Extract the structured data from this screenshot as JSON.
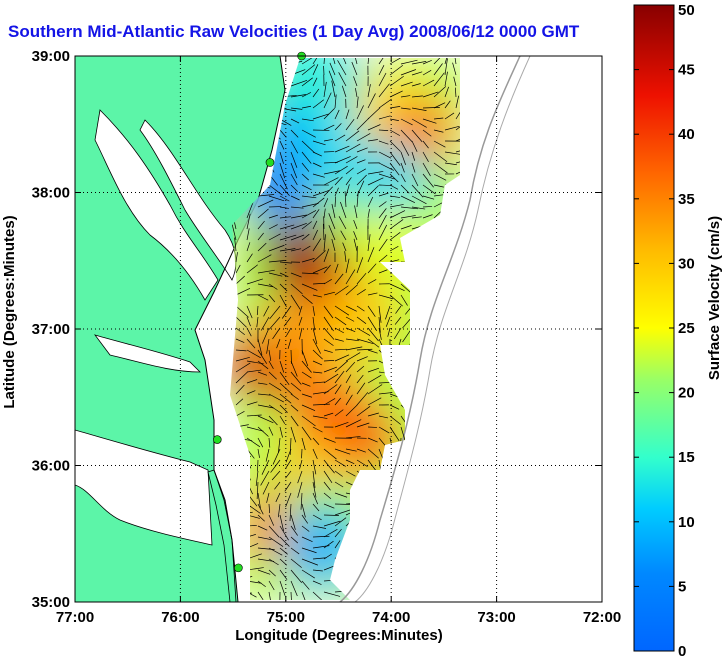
{
  "chart_data": {
    "type": "heatmap",
    "title": "Southern Mid-Atlantic Raw Velocities (1 Day Avg) 2008/06/12 0000 GMT",
    "xlabel": "Longitude (Degrees:Minutes)",
    "ylabel": "Latitude (Degrees:Minutes)",
    "colorbar_label": "Surface Velocity (cm/s)",
    "xlim": [
      -77,
      -72
    ],
    "ylim": [
      35,
      39
    ],
    "clim": [
      0,
      50
    ],
    "xticks": [
      -77,
      -76,
      -75,
      -74,
      -73,
      -72
    ],
    "xtick_labels": [
      "77:00",
      "76:00",
      "75:00",
      "74:00",
      "73:00",
      "72:00"
    ],
    "yticks": [
      35,
      36,
      37,
      38,
      39
    ],
    "ytick_labels": [
      "35:00",
      "36:00",
      "37:00",
      "38:00",
      "39:00"
    ],
    "cticks": [
      0,
      5,
      10,
      15,
      20,
      25,
      30,
      35,
      40,
      45,
      50
    ],
    "ctick_labels": [
      "0",
      "5",
      "10",
      "15",
      "20",
      "25",
      "30",
      "35",
      "40",
      "45",
      "50"
    ],
    "grid": true,
    "land_color": "#5cf5a8",
    "colormap": "jet",
    "speed_field": [
      {
        "lon": -74.85,
        "lat": 37.5,
        "speed": 50
      },
      {
        "lon": -74.55,
        "lat": 37.2,
        "speed": 44
      },
      {
        "lon": -75.2,
        "lat": 36.75,
        "speed": 46
      },
      {
        "lon": -74.9,
        "lat": 36.9,
        "speed": 34
      },
      {
        "lon": -74.3,
        "lat": 37.05,
        "speed": 30
      },
      {
        "lon": -74.6,
        "lat": 36.4,
        "speed": 37
      },
      {
        "lon": -74.3,
        "lat": 36.2,
        "speed": 38
      },
      {
        "lon": -74.75,
        "lat": 35.9,
        "speed": 30
      },
      {
        "lon": -75.05,
        "lat": 35.55,
        "speed": 36
      },
      {
        "lon": -74.65,
        "lat": 35.6,
        "speed": 20
      },
      {
        "lon": -74.65,
        "lat": 35.4,
        "speed": 9
      },
      {
        "lon": -74.6,
        "lat": 38.75,
        "speed": 9
      },
      {
        "lon": -74.95,
        "lat": 38.5,
        "speed": 8
      },
      {
        "lon": -75.05,
        "lat": 38.05,
        "speed": 6
      },
      {
        "lon": -74.5,
        "lat": 38.3,
        "speed": 12
      },
      {
        "lon": -74.0,
        "lat": 38.6,
        "speed": 26
      },
      {
        "lon": -73.75,
        "lat": 38.45,
        "speed": 35
      },
      {
        "lon": -74.0,
        "lat": 38.05,
        "speed": 12
      },
      {
        "lon": -74.0,
        "lat": 37.6,
        "speed": 24
      },
      {
        "lon": -74.8,
        "lat": 38.85,
        "speed": 14
      }
    ],
    "station_markers": [
      {
        "lon": -74.85,
        "lat": 39.0
      },
      {
        "lon": -75.15,
        "lat": 38.22
      },
      {
        "lon": -75.65,
        "lat": 36.19
      },
      {
        "lon": -75.45,
        "lat": 35.25
      }
    ]
  }
}
